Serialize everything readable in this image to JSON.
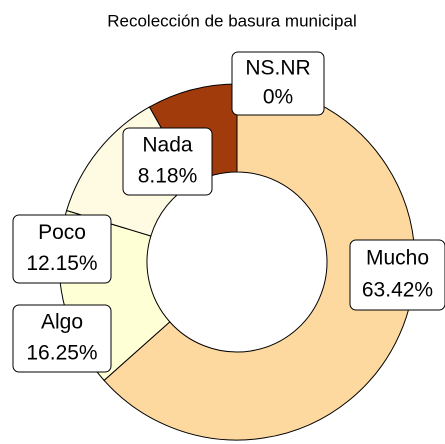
{
  "chart_data": {
    "type": "donut",
    "title": "Recolección de basura municipal",
    "categories": [
      "Mucho",
      "Algo",
      "Poco",
      "Nada",
      "NS.NR"
    ],
    "values": [
      63.42,
      16.25,
      12.15,
      8.18,
      0
    ],
    "value_labels": [
      "63.42%",
      "16.25%",
      "12.15%",
      "8.18%",
      "0%"
    ],
    "colors": [
      "#fdd9a0",
      "#ffffd6",
      "#fffbe2",
      "#a13b0c",
      "#fb9a2c"
    ]
  }
}
